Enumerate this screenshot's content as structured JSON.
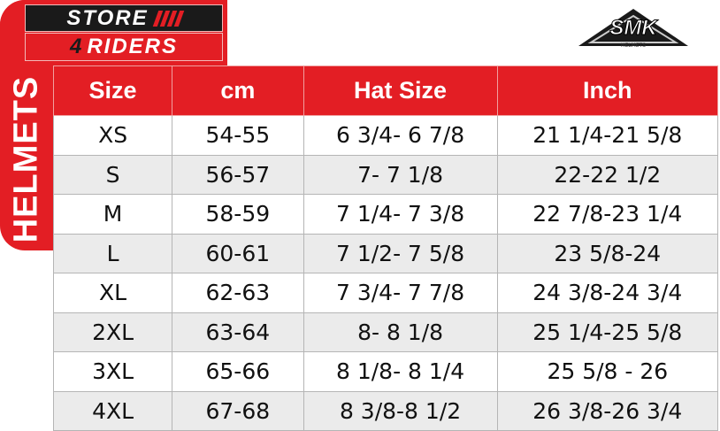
{
  "logo": {
    "line1": "STORE",
    "line2_number": "4",
    "line2": "RIDERS"
  },
  "brand_logo": {
    "name": "SMK",
    "sub": "HELMETS"
  },
  "side_label": "HELMETS",
  "colors": {
    "accent": "#e31e24",
    "row_alt": "#ebebeb"
  },
  "table": {
    "headers": [
      "Size",
      "cm",
      "Hat Size",
      "Inch"
    ],
    "rows": [
      [
        "XS",
        "54-55",
        "6 3/4- 6 7/8",
        "21 1/4-21 5/8"
      ],
      [
        "S",
        "56-57",
        "7- 7 1/8",
        "22-22 1/2"
      ],
      [
        "M",
        "58-59",
        "7 1/4- 7 3/8",
        "22 7/8-23 1/4"
      ],
      [
        "L",
        "60-61",
        "7 1/2- 7 5/8",
        "23 5/8-24"
      ],
      [
        "XL",
        "62-63",
        "7 3/4- 7 7/8",
        "24 3/8-24 3/4"
      ],
      [
        "2XL",
        "63-64",
        "8- 8 1/8",
        "25 1/4-25 5/8"
      ],
      [
        "3XL",
        "65-66",
        "8 1/8- 8 1/4",
        "25 5/8 - 26"
      ],
      [
        "4XL",
        "67-68",
        "8 3/8-8 1/2",
        "26 3/8-26 3/4"
      ]
    ]
  }
}
